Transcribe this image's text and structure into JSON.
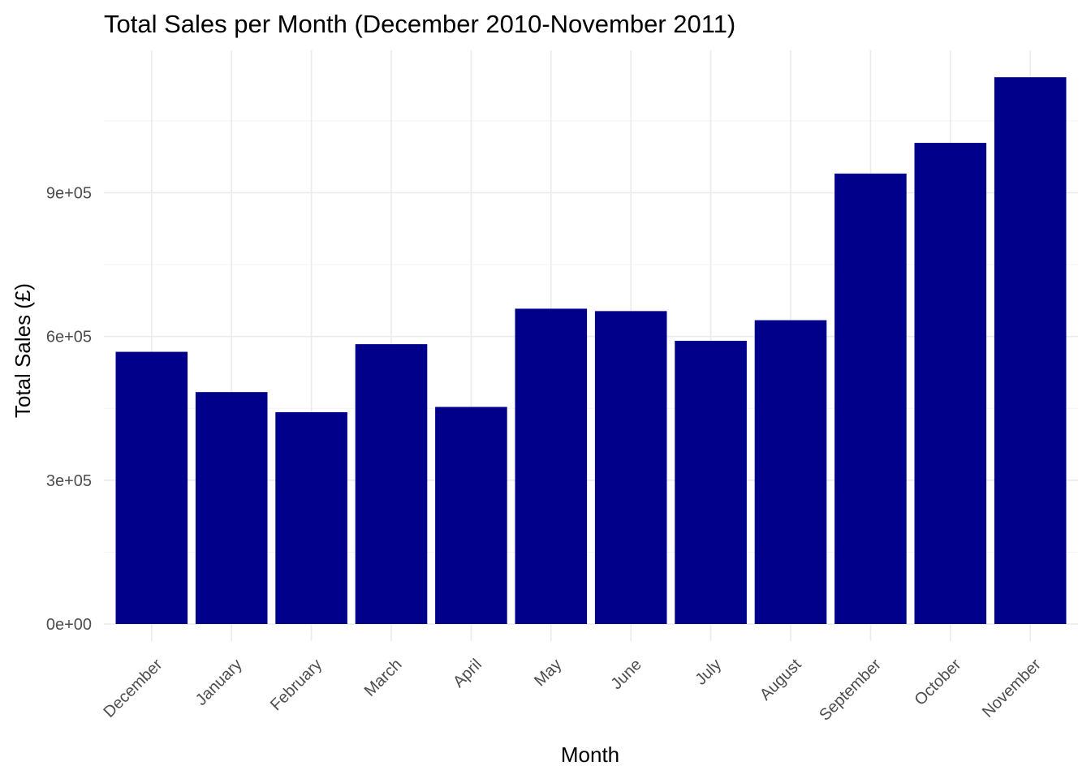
{
  "chart_data": {
    "type": "bar",
    "title": "Total Sales per Month (December 2010-November 2011)",
    "xlabel": "Month",
    "ylabel": "Total Sales (£)",
    "categories": [
      "December",
      "January",
      "February",
      "March",
      "April",
      "May",
      "June",
      "July",
      "August",
      "September",
      "October",
      "November"
    ],
    "values": [
      568000,
      484000,
      442000,
      584000,
      453000,
      658000,
      653000,
      591000,
      634000,
      940000,
      1004000,
      1141000
    ],
    "ylim": [
      0,
      1200000
    ],
    "y_ticks": [
      0,
      300000,
      600000,
      900000
    ],
    "y_tick_labels": [
      "0e+00",
      "3e+05",
      "6e+05",
      "9e+05"
    ],
    "bar_color": "#00008b",
    "grid": true,
    "legend": "none"
  }
}
